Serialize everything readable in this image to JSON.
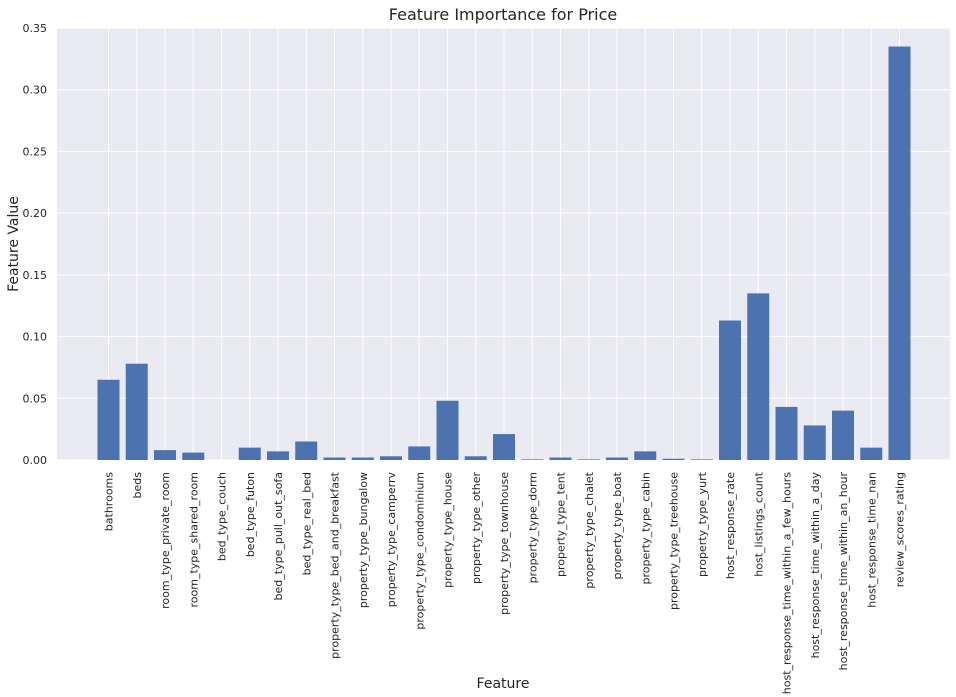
{
  "chart_data": {
    "type": "bar",
    "title": "Feature Importance for Price",
    "xlabel": "Feature",
    "ylabel": "Feature Value",
    "ylim": [
      0,
      0.35
    ],
    "yticks": [
      "0.00",
      "0.05",
      "0.10",
      "0.15",
      "0.20",
      "0.25",
      "0.30",
      "0.35"
    ],
    "grid": true,
    "bar_color": "#4c72b0",
    "background_color": "#eaeaf2",
    "categories": [
      "bathrooms",
      "beds",
      "room_type_private_room",
      "room_type_shared_room",
      "bed_type_couch",
      "bed_type_futon",
      "bed_type_pull_out_sofa",
      "bed_type_real_bed",
      "property_type_bed_and_breakfast",
      "property_type_bungalow",
      "property_type_camperrv",
      "property_type_condominium",
      "property_type_house",
      "property_type_other",
      "property_type_townhouse",
      "property_type_dorm",
      "property_type_tent",
      "property_type_chalet",
      "property_type_boat",
      "property_type_cabin",
      "property_type_treehouse",
      "property_type_yurt",
      "host_response_rate",
      "host_listings_count",
      "host_response_time_within_a_few_hours",
      "host_response_time_within_a_day",
      "host_response_time_within_an_hour",
      "host_response_time_nan",
      "review_scores_rating"
    ],
    "values": [
      0.065,
      0.078,
      0.008,
      0.006,
      0.0,
      0.01,
      0.007,
      0.015,
      0.002,
      0.002,
      0.003,
      0.011,
      0.048,
      0.003,
      0.021,
      0.0005,
      0.002,
      0.0005,
      0.002,
      0.007,
      0.001,
      0.0005,
      0.113,
      0.135,
      0.043,
      0.028,
      0.04,
      0.01,
      0.335
    ]
  }
}
